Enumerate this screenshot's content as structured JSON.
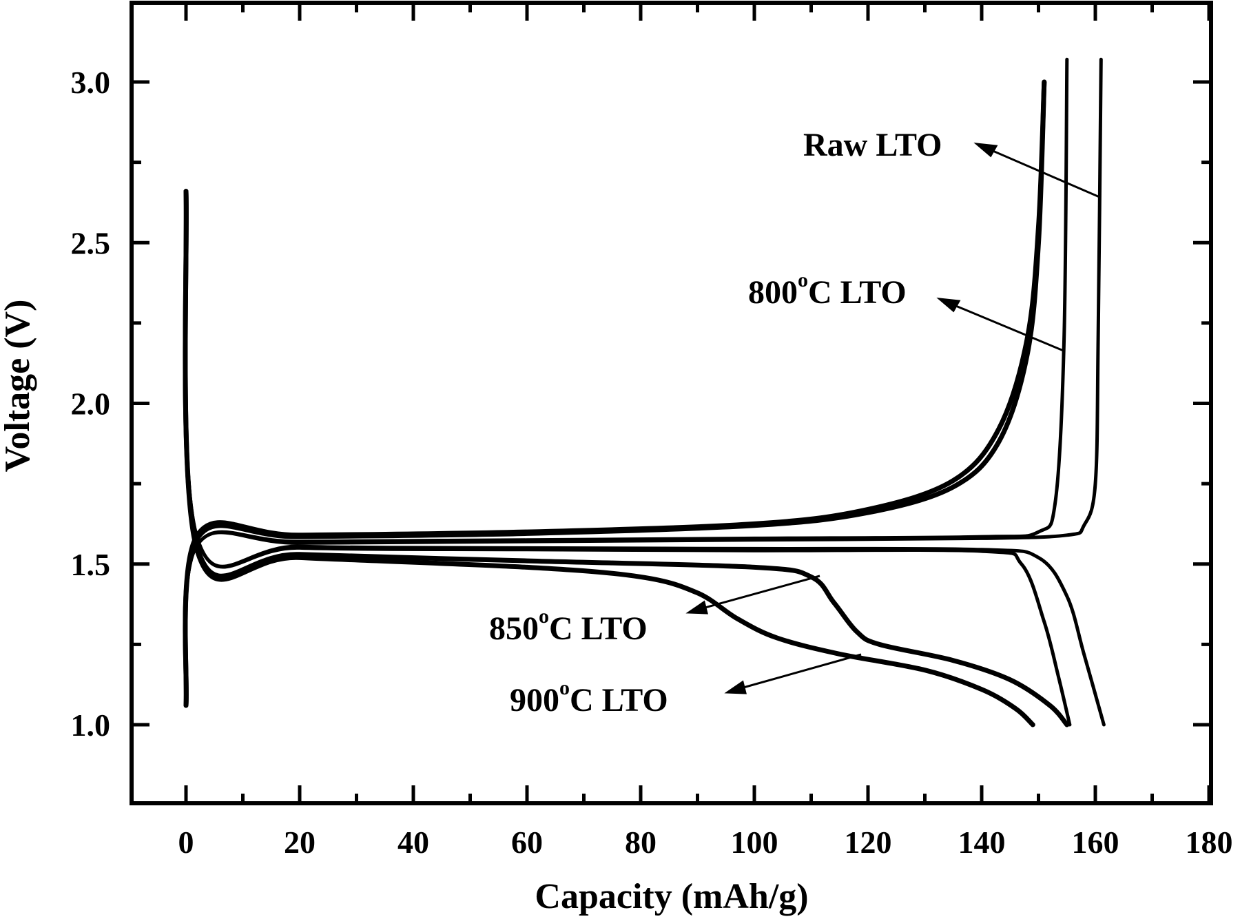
{
  "chart_data": {
    "type": "line",
    "title": "",
    "xlabel": "Capacity (mAh/g)",
    "ylabel": "Voltage (V)",
    "xlim": [
      -10,
      180
    ],
    "ylim": [
      0.78,
      3.25
    ],
    "grid": false,
    "legend": "none (curves labeled with arrow annotations)",
    "x_ticks": [
      0,
      20,
      40,
      60,
      80,
      100,
      120,
      140,
      160,
      180
    ],
    "x_tick_labels": [
      "0",
      "20",
      "40",
      "60",
      "80",
      "100",
      "120",
      "140",
      "160",
      "180"
    ],
    "y_ticks": [
      1.0,
      1.5,
      2.0,
      2.5,
      3.0
    ],
    "y_tick_labels": [
      "1.0",
      "1.5",
      "2.0",
      "2.5",
      "3.0"
    ],
    "annotations": [
      {
        "text": "Raw LTO",
        "target_series": "Raw LTO"
      },
      {
        "text": "800°C LTO",
        "target_series": "800°C LTO"
      },
      {
        "text": "850°C LTO",
        "target_series": "850°C LTO"
      },
      {
        "text": "900°C LTO",
        "target_series": "900°C LTO"
      }
    ],
    "series": [
      {
        "name": "Raw LTO",
        "charge": {
          "x": [
            0,
            2,
            20,
            60,
            100,
            140,
            155,
            158,
            160,
            160.5,
            161
          ],
          "y": [
            1.06,
            1.56,
            1.565,
            1.57,
            1.575,
            1.58,
            1.59,
            1.62,
            1.75,
            2.2,
            3.07
          ]
        },
        "discharge": {
          "x": [
            0,
            2,
            20,
            60,
            100,
            140,
            150,
            155,
            158,
            161.5
          ],
          "y": [
            2.66,
            1.58,
            1.555,
            1.55,
            1.548,
            1.545,
            1.52,
            1.4,
            1.22,
            1.0
          ]
        }
      },
      {
        "name": "800°C LTO",
        "charge": {
          "x": [
            0,
            2,
            20,
            60,
            100,
            140,
            150,
            153,
            154.5,
            155
          ],
          "y": [
            1.06,
            1.56,
            1.57,
            1.575,
            1.58,
            1.585,
            1.6,
            1.7,
            2.2,
            3.07
          ]
        },
        "discharge": {
          "x": [
            0,
            2,
            20,
            60,
            100,
            140,
            147,
            151,
            153.5,
            155.5
          ],
          "y": [
            2.66,
            1.58,
            1.55,
            1.545,
            1.542,
            1.54,
            1.5,
            1.32,
            1.15,
            1.0
          ]
        }
      },
      {
        "name": "850°C LTO",
        "charge": {
          "x": [
            0,
            2,
            20,
            60,
            100,
            120,
            135,
            143,
            148,
            150,
            151
          ],
          "y": [
            1.06,
            1.58,
            1.585,
            1.595,
            1.62,
            1.66,
            1.74,
            1.88,
            2.15,
            2.5,
            3.0
          ]
        },
        "discharge": {
          "x": [
            0,
            2,
            20,
            60,
            100,
            110,
            114,
            118,
            122,
            135,
            145,
            152,
            155
          ],
          "y": [
            2.66,
            1.55,
            1.53,
            1.51,
            1.49,
            1.46,
            1.38,
            1.29,
            1.25,
            1.2,
            1.14,
            1.06,
            1.0
          ]
        }
      },
      {
        "name": "900°C LTO",
        "charge": {
          "x": [
            0,
            2,
            20,
            60,
            100,
            120,
            135,
            143,
            148,
            150,
            151
          ],
          "y": [
            1.06,
            1.59,
            1.59,
            1.6,
            1.625,
            1.67,
            1.76,
            1.92,
            2.2,
            2.55,
            3.0
          ]
        },
        "discharge": {
          "x": [
            0,
            2,
            20,
            60,
            80,
            90,
            97,
            104,
            115,
            130,
            140,
            146,
            149
          ],
          "y": [
            2.66,
            1.54,
            1.52,
            1.49,
            1.46,
            1.41,
            1.33,
            1.27,
            1.22,
            1.17,
            1.11,
            1.05,
            1.0
          ]
        }
      }
    ]
  },
  "axes": {
    "x_title": "Capacity (mAh/g)",
    "y_title": "Voltage (V)",
    "x_tick_labels": [
      "0",
      "20",
      "40",
      "60",
      "80",
      "100",
      "120",
      "140",
      "160",
      "180"
    ],
    "y_tick_labels": [
      "1.0",
      "1.5",
      "2.0",
      "2.5",
      "3.0"
    ]
  },
  "labels": {
    "raw": {
      "main": "Raw LTO"
    },
    "t800": {
      "num": "800",
      "deg": "o",
      "rest": "C LTO"
    },
    "t850": {
      "num": "850",
      "deg": "o",
      "rest": "C LTO"
    },
    "t900": {
      "num": "900",
      "deg": "o",
      "rest": "C LTO"
    }
  },
  "style": {
    "line_color": "#000000",
    "background": "#ffffff"
  }
}
